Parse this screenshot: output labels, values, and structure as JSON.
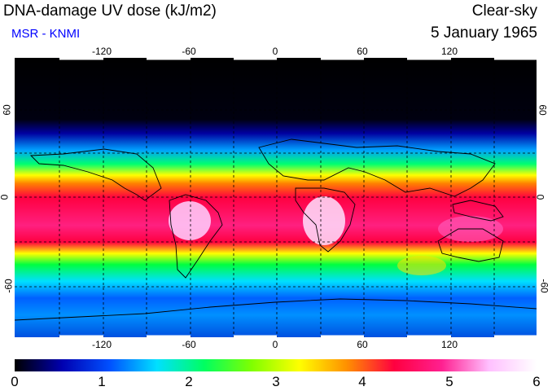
{
  "header": {
    "title": "DNA-damage UV dose (kJ/m2)",
    "subtitle": "MSR - KNMI",
    "sky_condition": "Clear-sky",
    "date": "5 January 1965"
  },
  "map": {
    "projection": "equirectangular",
    "lon_range": [
      -180,
      180
    ],
    "lat_range": [
      -90,
      90
    ],
    "grid_style": "dashed",
    "lon_ticks": [
      "-120",
      "-60",
      "0",
      "60",
      "120"
    ],
    "lat_ticks": [
      "60",
      "0",
      "-60"
    ]
  },
  "colorbar": {
    "range": [
      0,
      6
    ],
    "unit": "kJ/m2",
    "labels": [
      "0",
      "1",
      "2",
      "3",
      "4",
      "5",
      "6"
    ],
    "colors": [
      "#000000",
      "#0000b0",
      "#0050ff",
      "#00e0ff",
      "#00ff60",
      "#80ff00",
      "#ffff00",
      "#ff9000",
      "#ff0040",
      "#ff2090",
      "#ffc0ff",
      "#ffffff"
    ]
  }
}
